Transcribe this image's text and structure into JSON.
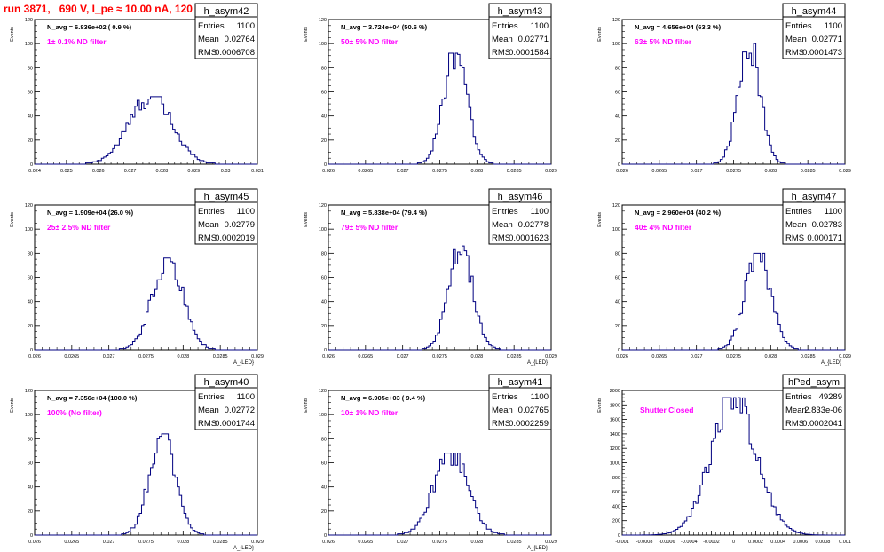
{
  "header": {
    "title": "run 3871,   690 V, I_pe ≈ 10.00 nA, 120 Hz"
  },
  "colors": {
    "title": "#ff0000",
    "annotation": "#ff00ff",
    "histogram_line": "#000080",
    "axes": "#000000"
  },
  "chart_data": [
    {
      "type": "histogram",
      "name": "h_asym42",
      "stats": {
        "entries": "1100",
        "mean": "0.02764",
        "rms": "0.0006708"
      },
      "avg_text": "N_avg = 6.836e+02 ( 0.9 %)",
      "annotation": "1± 0.1% ND filter",
      "xlim": [
        0.024,
        0.031
      ],
      "ylim": [
        0,
        120
      ],
      "xticks": [
        "0.024",
        "0.025",
        "0.026",
        "0.027",
        "0.028",
        "0.029",
        "0.03",
        "0.031"
      ],
      "yticks": [
        "0",
        "20",
        "40",
        "60",
        "80",
        "100",
        "120"
      ],
      "ylabel": "Events",
      "xlabel": "",
      "mean": 0.02764,
      "rms": 0.0006708,
      "peak": 56,
      "bins": 100
    },
    {
      "type": "histogram",
      "name": "h_asym43",
      "stats": {
        "entries": "1100",
        "mean": "0.02771",
        "rms": "0.0001584"
      },
      "avg_text": "N_avg = 3.724e+04 (50.6 %)",
      "annotation": "50± 5% ND filter",
      "xlim": [
        0.026,
        0.029
      ],
      "ylim": [
        0,
        120
      ],
      "xticks": [
        "0.026",
        "0.0265",
        "0.027",
        "0.0275",
        "0.028",
        "0.0285",
        "0.029"
      ],
      "yticks": [
        "0",
        "20",
        "40",
        "60",
        "80",
        "100",
        "120"
      ],
      "ylabel": "Events",
      "xlabel": "",
      "mean": 0.02771,
      "rms": 0.0001584,
      "peak": 92,
      "bins": 100
    },
    {
      "type": "histogram",
      "name": "h_asym44",
      "stats": {
        "entries": "1100",
        "mean": "0.02771",
        "rms": "0.0001473"
      },
      "avg_text": "N_avg = 4.656e+04 (63.3 %)",
      "annotation": "63± 5% ND filter",
      "xlim": [
        0.026,
        0.029
      ],
      "ylim": [
        0,
        120
      ],
      "xticks": [
        "0.026",
        "0.0265",
        "0.027",
        "0.0275",
        "0.028",
        "0.0285",
        "0.029"
      ],
      "yticks": [
        "0",
        "20",
        "40",
        "60",
        "80",
        "100",
        "120"
      ],
      "ylabel": "Events",
      "xlabel": "",
      "mean": 0.02771,
      "rms": 0.0001473,
      "peak": 100,
      "bins": 100
    },
    {
      "type": "histogram",
      "name": "h_asym45",
      "stats": {
        "entries": "1100",
        "mean": "0.02779",
        "rms": "0.0002019"
      },
      "avg_text": "N_avg = 1.909e+04 (26.0 %)",
      "annotation": "25± 2.5% ND filter",
      "xlim": [
        0.026,
        0.029
      ],
      "ylim": [
        0,
        120
      ],
      "xticks": [
        "0.026",
        "0.0265",
        "0.027",
        "0.0275",
        "0.028",
        "0.0285",
        "0.029"
      ],
      "yticks": [
        "0",
        "20",
        "40",
        "60",
        "80",
        "100",
        "120"
      ],
      "ylabel": "Events",
      "xlabel": "A_{LED}",
      "mean": 0.02779,
      "rms": 0.0002019,
      "peak": 76,
      "bins": 100
    },
    {
      "type": "histogram",
      "name": "h_asym46",
      "stats": {
        "entries": "1100",
        "mean": "0.02778",
        "rms": "0.0001623"
      },
      "avg_text": "N_avg = 5.838e+04 (79.4 %)",
      "annotation": "79± 5% ND filter",
      "xlim": [
        0.026,
        0.029
      ],
      "ylim": [
        0,
        120
      ],
      "xticks": [
        "0.026",
        "0.0265",
        "0.027",
        "0.0275",
        "0.028",
        "0.0285",
        "0.029"
      ],
      "yticks": [
        "0",
        "20",
        "40",
        "60",
        "80",
        "100",
        "120"
      ],
      "ylabel": "Events",
      "xlabel": "A_{LED}",
      "mean": 0.02778,
      "rms": 0.0001623,
      "peak": 86,
      "bins": 100
    },
    {
      "type": "histogram",
      "name": "h_asym47",
      "stats": {
        "entries": "1100",
        "mean": "0.02783",
        "rms": "0.000171"
      },
      "avg_text": "N_avg = 2.960e+04 (40.2 %)",
      "annotation": "40± 4% ND filter",
      "xlim": [
        0.026,
        0.029
      ],
      "ylim": [
        0,
        120
      ],
      "xticks": [
        "0.026",
        "0.0265",
        "0.027",
        "0.0275",
        "0.028",
        "0.0285",
        "0.029"
      ],
      "yticks": [
        "0",
        "20",
        "40",
        "60",
        "80",
        "100",
        "120"
      ],
      "ylabel": "Events",
      "xlabel": "A_{LED}",
      "mean": 0.02783,
      "rms": 0.000171,
      "peak": 80,
      "bins": 100
    },
    {
      "type": "histogram",
      "name": "h_asym40",
      "stats": {
        "entries": "1100",
        "mean": "0.02772",
        "rms": "0.0001744"
      },
      "avg_text": "N_avg = 7.356e+04 (100.0 %)",
      "annotation": "100% (No filter)",
      "xlim": [
        0.026,
        0.029
      ],
      "ylim": [
        0,
        120
      ],
      "xticks": [
        "0.026",
        "0.0265",
        "0.027",
        "0.0275",
        "0.028",
        "0.0285",
        "0.029"
      ],
      "yticks": [
        "0",
        "20",
        "40",
        "60",
        "80",
        "100",
        "120"
      ],
      "ylabel": "Events",
      "xlabel": "A_{LED}",
      "mean": 0.02772,
      "rms": 0.0001744,
      "peak": 84,
      "bins": 100
    },
    {
      "type": "histogram",
      "name": "h_asym41",
      "stats": {
        "entries": "1100",
        "mean": "0.02765",
        "rms": "0.0002259"
      },
      "avg_text": "N_avg = 6.905e+03 ( 9.4 %)",
      "annotation": "10± 1% ND filter",
      "xlim": [
        0.026,
        0.029
      ],
      "ylim": [
        0,
        120
      ],
      "xticks": [
        "0.026",
        "0.0265",
        "0.027",
        "0.0275",
        "0.028",
        "0.0285",
        "0.029"
      ],
      "yticks": [
        "0",
        "20",
        "40",
        "60",
        "80",
        "100",
        "120"
      ],
      "ylabel": "Events",
      "xlabel": "A_{LED}",
      "mean": 0.02765,
      "rms": 0.0002259,
      "peak": 68,
      "bins": 100
    },
    {
      "type": "histogram",
      "name": "hPed_asym",
      "stats": {
        "entries": "49289",
        "mean": "2.833e-06",
        "rms": "0.0002041"
      },
      "avg_text": "",
      "annotation": "Shutter Closed",
      "xlim": [
        -0.001,
        0.001
      ],
      "ylim": [
        0,
        2000
      ],
      "xticks": [
        "-0.001",
        "-0.0008",
        "-0.0006",
        "-0.0004",
        "-0.0002",
        "0",
        "0.0002",
        "0.0004",
        "0.0006",
        "0.0008",
        "0.001"
      ],
      "yticks": [
        "0",
        "200",
        "400",
        "600",
        "800",
        "1000",
        "1200",
        "1400",
        "1600",
        "1800",
        "2000"
      ],
      "ylabel": "Events",
      "xlabel": "",
      "mean": 2.833e-06,
      "rms": 0.0002041,
      "peak": 1900,
      "bins": 100
    }
  ]
}
